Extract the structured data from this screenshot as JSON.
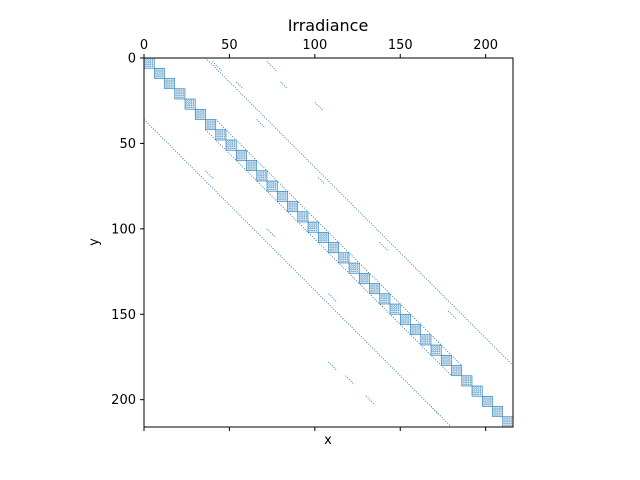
{
  "chart_data": {
    "type": "heatmap",
    "title": "Irradiance",
    "xlabel": "x",
    "ylabel": "y",
    "xlim": [
      0,
      216
    ],
    "ylim": [
      216,
      0
    ],
    "x_ticks": [
      0,
      50,
      100,
      150,
      200
    ],
    "y_ticks": [
      0,
      50,
      100,
      150,
      200
    ],
    "x_tick_labels": [
      "0",
      "50",
      "100",
      "150",
      "200"
    ],
    "y_tick_labels": [
      "0",
      "50",
      "100",
      "150",
      "200"
    ],
    "x_ticks_position": "top-and-bottom",
    "marker_color": "#1f77b4",
    "description_of_pattern": "sparsity pattern of a banded matrix",
    "main_diagonal_blocks": [
      {
        "start": 0,
        "size": 6
      },
      {
        "start": 6,
        "size": 6
      },
      {
        "start": 12,
        "size": 6
      },
      {
        "start": 18,
        "size": 6
      },
      {
        "start": 24,
        "size": 6
      },
      {
        "start": 30,
        "size": 6
      },
      {
        "start": 36,
        "size": 6
      },
      {
        "start": 42,
        "size": 6
      },
      {
        "start": 48,
        "size": 6
      },
      {
        "start": 54,
        "size": 6
      },
      {
        "start": 60,
        "size": 6
      },
      {
        "start": 66,
        "size": 6
      },
      {
        "start": 72,
        "size": 6
      },
      {
        "start": 78,
        "size": 6
      },
      {
        "start": 84,
        "size": 6
      },
      {
        "start": 90,
        "size": 6
      },
      {
        "start": 96,
        "size": 6
      },
      {
        "start": 102,
        "size": 6
      },
      {
        "start": 108,
        "size": 6
      },
      {
        "start": 114,
        "size": 6
      },
      {
        "start": 120,
        "size": 6
      },
      {
        "start": 126,
        "size": 6
      },
      {
        "start": 132,
        "size": 6
      },
      {
        "start": 138,
        "size": 6
      },
      {
        "start": 144,
        "size": 6
      },
      {
        "start": 150,
        "size": 6
      },
      {
        "start": 156,
        "size": 6
      },
      {
        "start": 162,
        "size": 6
      },
      {
        "start": 168,
        "size": 6
      },
      {
        "start": 174,
        "size": 6
      },
      {
        "start": 180,
        "size": 6
      },
      {
        "start": 186,
        "size": 6
      },
      {
        "start": 192,
        "size": 6
      },
      {
        "start": 198,
        "size": 6
      },
      {
        "start": 204,
        "size": 6
      },
      {
        "start": 210,
        "size": 6
      }
    ],
    "off_diagonal_bands": [
      {
        "offset": 36,
        "from": 0,
        "to": 180
      },
      {
        "offset": -36,
        "from": 36,
        "to": 216
      },
      {
        "offset": 6,
        "from": 36,
        "to": 180
      },
      {
        "offset": -6,
        "from": 42,
        "to": 186
      }
    ],
    "scattered_segments": [
      {
        "row": 2,
        "col": 40,
        "len": 6
      },
      {
        "row": 2,
        "col": 72,
        "len": 6
      },
      {
        "row": 14,
        "col": 54,
        "len": 4
      },
      {
        "row": 14,
        "col": 80,
        "len": 4
      },
      {
        "row": 26,
        "col": 100,
        "len": 5
      },
      {
        "row": 36,
        "col": 66,
        "len": 5
      },
      {
        "row": 66,
        "col": 36,
        "len": 5
      },
      {
        "row": 70,
        "col": 102,
        "len": 4
      },
      {
        "row": 100,
        "col": 72,
        "len": 5
      },
      {
        "row": 108,
        "col": 138,
        "len": 5
      },
      {
        "row": 138,
        "col": 108,
        "len": 5
      },
      {
        "row": 148,
        "col": 178,
        "len": 5
      },
      {
        "row": 178,
        "col": 108,
        "len": 5
      },
      {
        "row": 186,
        "col": 118,
        "len": 5
      },
      {
        "row": 198,
        "col": 130,
        "len": 5
      },
      {
        "row": 204,
        "col": 168,
        "len": 5
      }
    ]
  }
}
